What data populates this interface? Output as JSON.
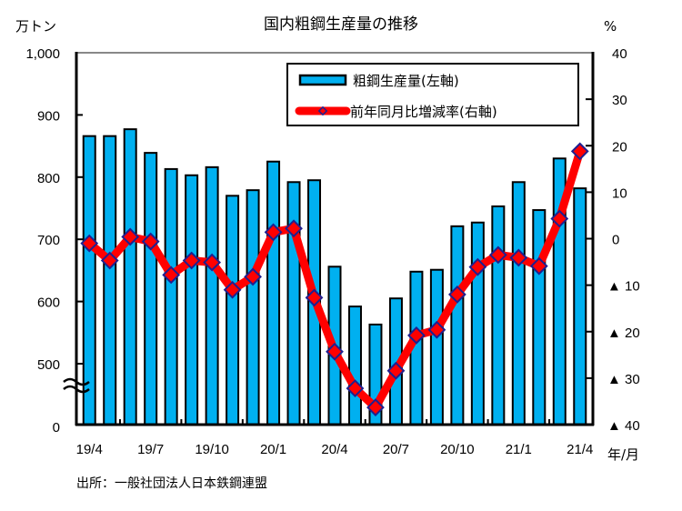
{
  "chart_data": {
    "type": "bar",
    "title": "国内粗鋼生産量の推移",
    "left_unit": "万トン",
    "right_unit": "%",
    "x_unit": "年/月",
    "source": "出所：一般社団法人日本鉄鋼連盟",
    "categories": [
      "19/4",
      "19/5",
      "19/6",
      "19/7",
      "19/8",
      "19/9",
      "19/10",
      "19/11",
      "19/12",
      "20/1",
      "20/2",
      "20/3",
      "20/4",
      "20/5",
      "20/6",
      "20/7",
      "20/8",
      "20/9",
      "20/10",
      "20/11",
      "20/12",
      "21/1",
      "21/2",
      "21/3",
      "21/4"
    ],
    "x_tick_labels": [
      "19/4",
      "19/7",
      "19/10",
      "20/1",
      "20/4",
      "20/7",
      "20/10",
      "21/1",
      "21/4"
    ],
    "left_axis": {
      "ticks": [
        0,
        500,
        600,
        700,
        800,
        900,
        1000
      ],
      "tick_labels": [
        "0",
        "500",
        "600",
        "700",
        "800",
        "900",
        "1,000"
      ],
      "ylim": [
        0,
        1000
      ],
      "broken_between": [
        0,
        500
      ]
    },
    "right_axis": {
      "ticks": [
        -40,
        -30,
        -20,
        -10,
        0,
        10,
        20,
        30,
        40
      ],
      "tick_labels": [
        "▲ 40",
        "▲ 30",
        "▲ 20",
        "▲ 10",
        "0",
        "10",
        "20",
        "30",
        "40"
      ],
      "ylim": [
        -40,
        40
      ]
    },
    "series": [
      {
        "name": "粗鋼生産量(左軸)",
        "type": "bar",
        "axis": "left",
        "color": "#00b0f0",
        "values": [
          866,
          866,
          877,
          839,
          813,
          803,
          816,
          770,
          779,
          825,
          792,
          795,
          656,
          592,
          563,
          605,
          648,
          651,
          721,
          727,
          753,
          792,
          747,
          830,
          782
        ]
      },
      {
        "name": "前年同月比増減率(右軸)",
        "type": "line",
        "axis": "right",
        "color": "#ff0000",
        "marker_color": "#1f1f8f",
        "values": [
          -1.0,
          -4.7,
          0.4,
          -0.6,
          -7.8,
          -4.7,
          -5.1,
          -11.0,
          -8.2,
          1.4,
          2.2,
          -12.7,
          -24.3,
          -32.2,
          -36.3,
          -28.4,
          -20.8,
          -19.6,
          -12.0,
          -6.1,
          -3.5,
          -4.1,
          -5.9,
          4.3,
          18.8
        ]
      }
    ],
    "legend": {
      "position": "top-right"
    },
    "grid": false
  }
}
